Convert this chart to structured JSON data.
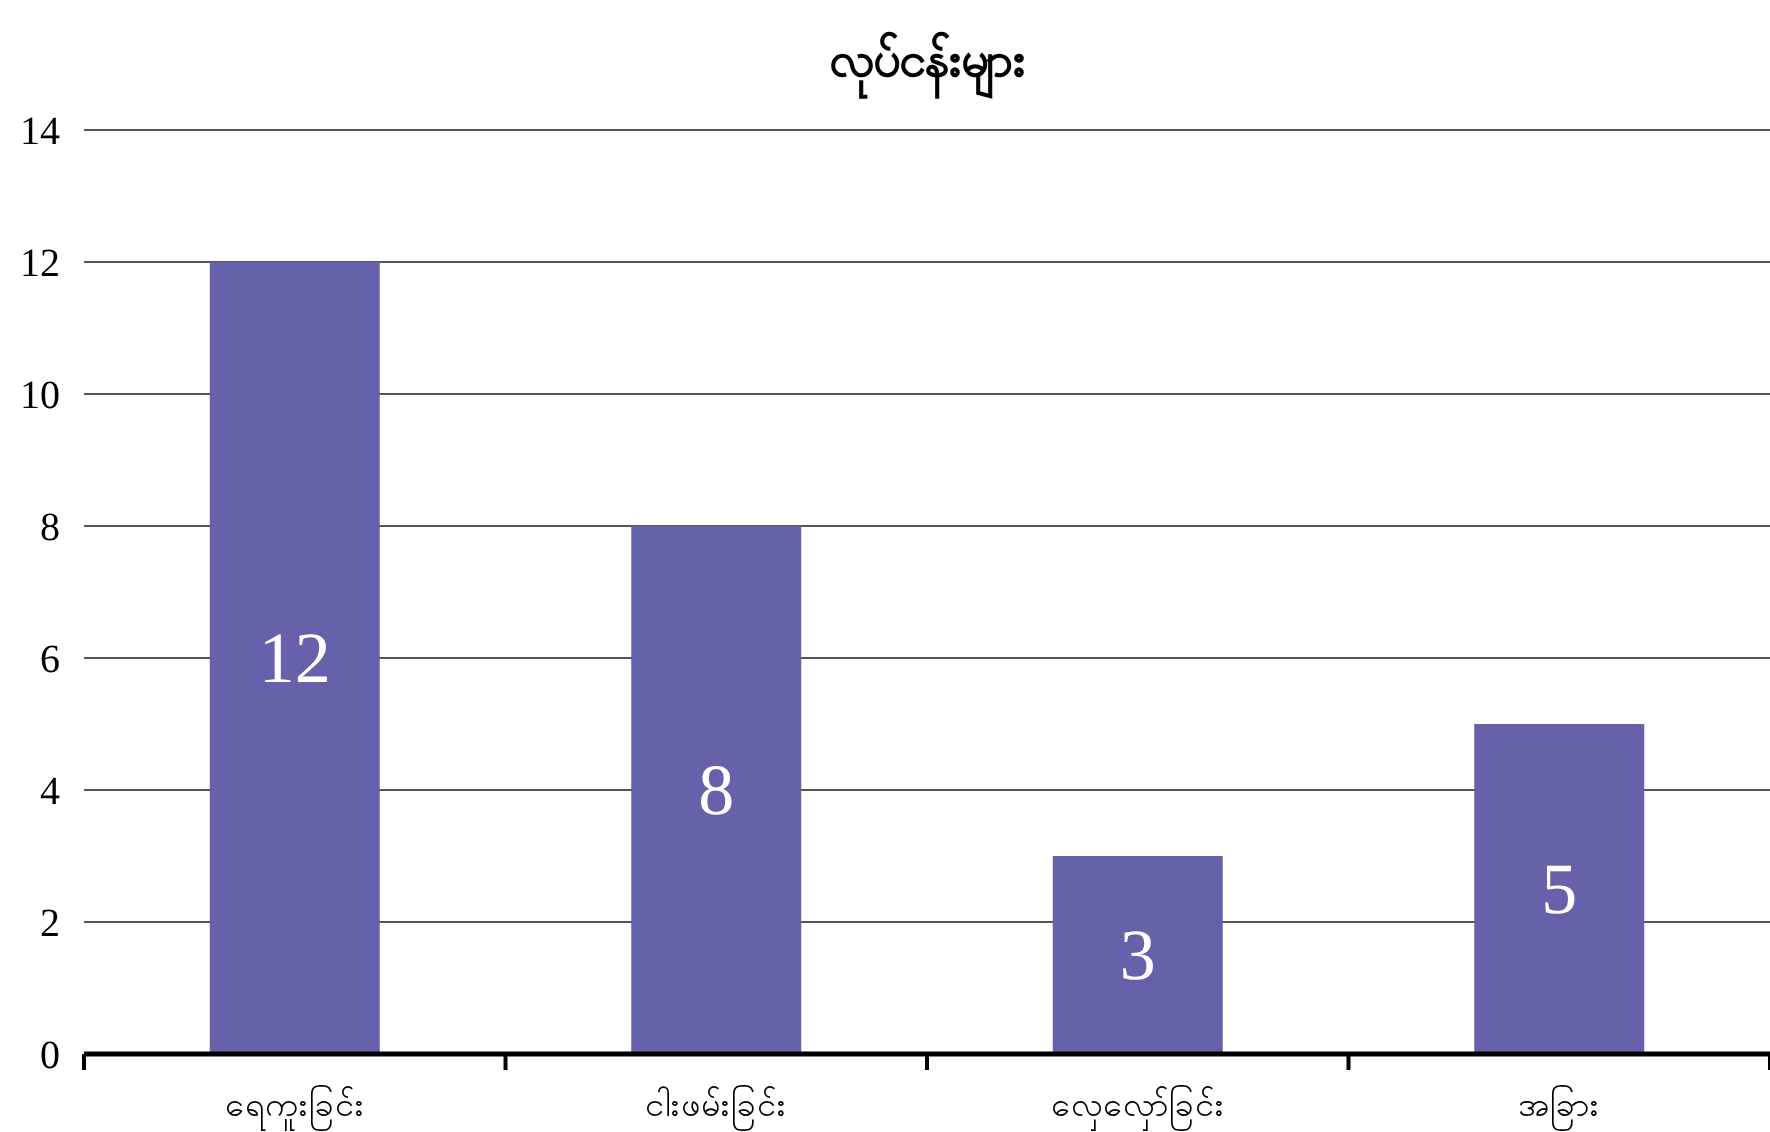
{
  "chart_data": {
    "type": "bar",
    "title": "လုပ်ငန်းများ",
    "categories": [
      "ရေကူးခြင်း",
      "ငါးဖမ်းခြင်း",
      "လှေလှော်ခြင်း",
      "အခြား"
    ],
    "values": [
      12,
      8,
      3,
      5
    ],
    "color": "#6661ab",
    "ylim": [
      0,
      14
    ],
    "yticks": [
      0,
      2,
      4,
      6,
      8,
      10,
      12,
      14
    ],
    "grid": "y",
    "data_labels": true
  }
}
